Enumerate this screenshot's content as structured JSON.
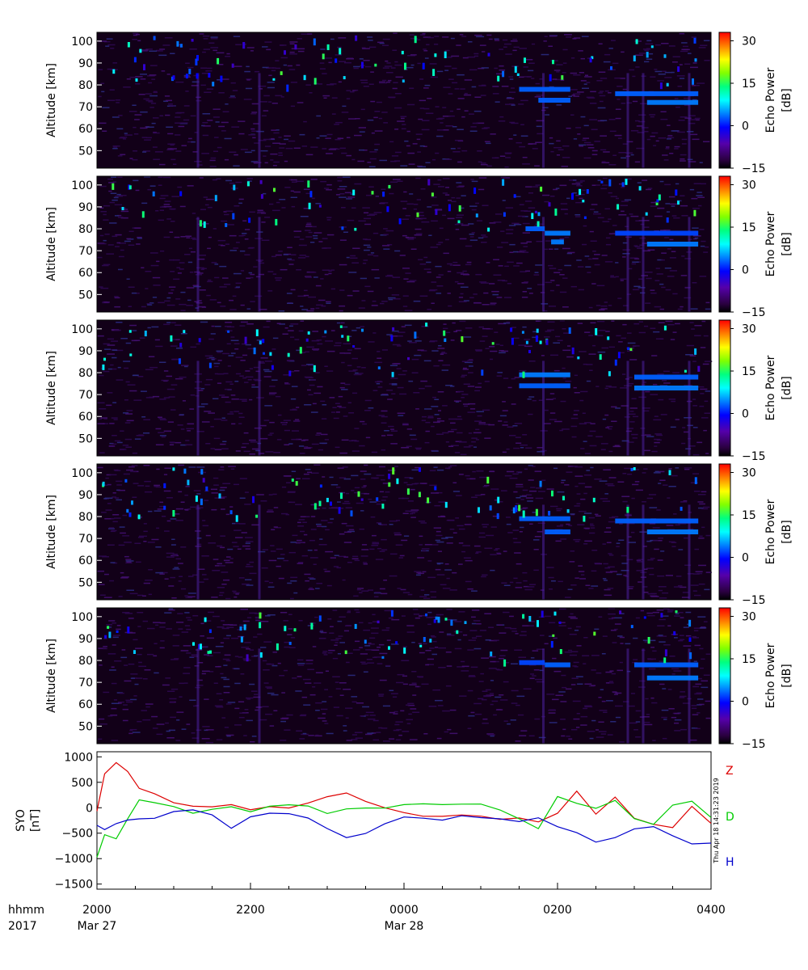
{
  "chart_data": [
    {
      "type": "heatmap",
      "panel": 1,
      "ylabel": "Altitude [km]",
      "yticks": [
        50,
        60,
        70,
        80,
        90,
        100
      ],
      "ylim": [
        42,
        104
      ],
      "colorbar_label": "Echo Power [dB]",
      "colorbar_ticks": [
        -15,
        0,
        15,
        30
      ],
      "colorbar_range": [
        -15,
        33
      ],
      "echo_layers": [
        {
          "start": "01:30",
          "end": "02:10",
          "altitude_km": 78,
          "power_db": 3
        },
        {
          "start": "01:45",
          "end": "02:10",
          "altitude_km": 73,
          "power_db": 3
        },
        {
          "start": "02:45",
          "end": "03:50",
          "altitude_km": 76,
          "power_db": 3
        },
        {
          "start": "03:10",
          "end": "03:50",
          "altitude_km": 72,
          "power_db": 4
        }
      ]
    },
    {
      "type": "heatmap",
      "panel": 2,
      "ylabel": "Altitude [km]",
      "yticks": [
        50,
        60,
        70,
        80,
        90,
        100
      ],
      "ylim": [
        42,
        104
      ],
      "colorbar_label": "Echo Power [dB]",
      "colorbar_ticks": [
        -15,
        0,
        15,
        30
      ],
      "colorbar_range": [
        -15,
        33
      ],
      "echo_layers": [
        {
          "start": "01:35",
          "end": "01:50",
          "altitude_km": 80,
          "power_db": 3
        },
        {
          "start": "01:50",
          "end": "02:10",
          "altitude_km": 78,
          "power_db": 4
        },
        {
          "start": "01:55",
          "end": "02:05",
          "altitude_km": 74,
          "power_db": 4
        },
        {
          "start": "02:45",
          "end": "03:50",
          "altitude_km": 78,
          "power_db": 2
        },
        {
          "start": "03:10",
          "end": "03:50",
          "altitude_km": 73,
          "power_db": 4
        }
      ]
    },
    {
      "type": "heatmap",
      "panel": 3,
      "ylabel": "Altitude [km]",
      "yticks": [
        50,
        60,
        70,
        80,
        90,
        100
      ],
      "ylim": [
        42,
        104
      ],
      "colorbar_label": "Echo Power [dB]",
      "colorbar_ticks": [
        -15,
        0,
        15,
        30
      ],
      "colorbar_range": [
        -15,
        33
      ],
      "echo_layers": [
        {
          "start": "01:30",
          "end": "02:10",
          "altitude_km": 79,
          "power_db": 4
        },
        {
          "start": "01:30",
          "end": "02:10",
          "altitude_km": 74,
          "power_db": 3
        },
        {
          "start": "03:00",
          "end": "03:50",
          "altitude_km": 78,
          "power_db": 3
        },
        {
          "start": "03:00",
          "end": "03:50",
          "altitude_km": 73,
          "power_db": 4
        }
      ]
    },
    {
      "type": "heatmap",
      "panel": 4,
      "ylabel": "Altitude [km]",
      "yticks": [
        50,
        60,
        70,
        80,
        90,
        100
      ],
      "ylim": [
        42,
        104
      ],
      "colorbar_label": "Echo Power [dB]",
      "colorbar_ticks": [
        -15,
        0,
        15,
        30
      ],
      "colorbar_range": [
        -15,
        33
      ],
      "echo_layers": [
        {
          "start": "01:30",
          "end": "02:10",
          "altitude_km": 79,
          "power_db": 3
        },
        {
          "start": "01:50",
          "end": "02:10",
          "altitude_km": 73,
          "power_db": 3
        },
        {
          "start": "02:45",
          "end": "03:50",
          "altitude_km": 78,
          "power_db": 3
        },
        {
          "start": "03:10",
          "end": "03:50",
          "altitude_km": 73,
          "power_db": 4
        }
      ]
    },
    {
      "type": "heatmap",
      "panel": 5,
      "ylabel": "Altitude [km]",
      "yticks": [
        50,
        60,
        70,
        80,
        90,
        100
      ],
      "ylim": [
        42,
        104
      ],
      "colorbar_label": "Echo Power [dB]",
      "colorbar_ticks": [
        -15,
        0,
        15,
        30
      ],
      "colorbar_range": [
        -15,
        33
      ],
      "echo_layers": [
        {
          "start": "01:30",
          "end": "01:50",
          "altitude_km": 79,
          "power_db": 2
        },
        {
          "start": "01:50",
          "end": "02:10",
          "altitude_km": 78,
          "power_db": 3
        },
        {
          "start": "03:00",
          "end": "03:50",
          "altitude_km": 78,
          "power_db": 3
        },
        {
          "start": "03:10",
          "end": "03:50",
          "altitude_km": 72,
          "power_db": 4
        }
      ]
    },
    {
      "type": "line",
      "panel": 6,
      "ylabel": "SYO [nT]",
      "ylim": [
        -1600,
        1100
      ],
      "yticks": [
        -1500,
        -1000,
        -500,
        0,
        500,
        1000
      ],
      "ytick_labels": [
        "−1500",
        "−1000",
        "−500",
        "0",
        "500",
        "1000"
      ],
      "x_hours_from_2000": [
        0,
        0.1,
        0.25,
        0.4,
        0.55,
        0.75,
        1.0,
        1.25,
        1.5,
        1.75,
        2.0,
        2.25,
        2.5,
        2.75,
        3.0,
        3.25,
        3.5,
        3.75,
        4.0,
        4.25,
        4.5,
        4.75,
        5.0,
        5.25,
        5.5,
        5.75,
        6.0,
        6.25,
        6.5,
        6.75,
        7.0,
        7.25,
        7.5,
        7.75,
        8.0
      ],
      "series": [
        {
          "name": "Z",
          "color": "#dd0000",
          "values": [
            -50,
            650,
            900,
            700,
            380,
            300,
            80,
            0,
            20,
            60,
            -50,
            0,
            20,
            80,
            200,
            280,
            150,
            0,
            -100,
            -150,
            -180,
            -160,
            -170,
            -200,
            -220,
            -250,
            -120,
            300,
            -100,
            200,
            -200,
            -300,
            -400,
            50,
            -300
          ]
        },
        {
          "name": "D",
          "color": "#00cc00",
          "values": [
            -1000,
            -500,
            -600,
            -200,
            150,
            80,
            0,
            -100,
            -30,
            0,
            -80,
            0,
            50,
            60,
            -100,
            -50,
            -30,
            20,
            80,
            60,
            60,
            100,
            50,
            -50,
            -200,
            -400,
            200,
            100,
            0,
            150,
            -200,
            -300,
            50,
            100,
            -200
          ]
        },
        {
          "name": "H",
          "color": "#0000cc",
          "values": [
            -350,
            -450,
            -300,
            -250,
            -200,
            -180,
            -100,
            -50,
            -150,
            -400,
            -150,
            -100,
            -100,
            -200,
            -400,
            -560,
            -500,
            -300,
            -200,
            -220,
            -250,
            -150,
            -200,
            -220,
            -250,
            -180,
            -400,
            -500,
            -700,
            -600,
            -400,
            -350,
            -550,
            -700,
            -700
          ]
        }
      ]
    }
  ],
  "x_axis": {
    "row1_label": "hhmm",
    "row2_label": "2017",
    "ticks": [
      {
        "time": "2000",
        "date": "Mar 27"
      },
      {
        "time": "2200",
        "date": ""
      },
      {
        "time": "0000",
        "date": "Mar 28"
      },
      {
        "time": "0200",
        "date": ""
      },
      {
        "time": "0400",
        "date": ""
      }
    ]
  },
  "timestamp": "Thu Apr 18 14:31:23 2019"
}
